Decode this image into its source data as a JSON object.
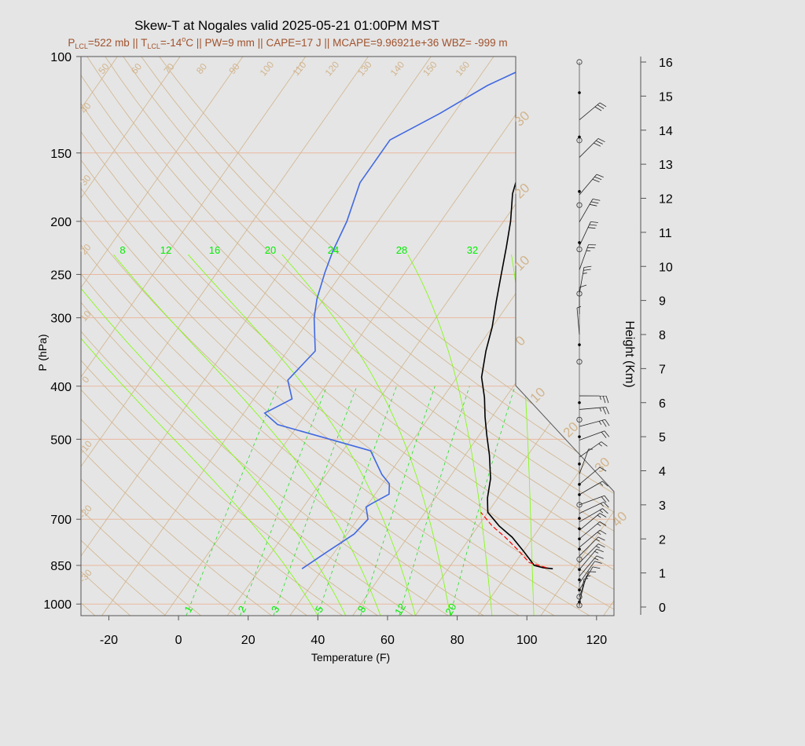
{
  "title": "Skew-T at Nogales valid 2025-05-21 01:00PM MST",
  "subtitle": {
    "p_lcl_sym": "P",
    "p_lcl_sub": "LCL",
    "p_lcl_val": "=522 mb || ",
    "t_lcl_sym": "T",
    "t_lcl_sub": "LCL",
    "t_lcl_val": "=-14",
    "deg": "o",
    "rest": "C || PW=9 mm || CAPE=17 J || MCAPE=9.96921e+36 WBZ= -999 m"
  },
  "chart_data": {
    "type": "line",
    "xlabel": "Temperature (F)",
    "ylabel": "P (hPa)",
    "y2label": "Height (Km)",
    "xlim": [
      -28,
      125
    ],
    "ylim": [
      1050,
      100
    ],
    "y_log": true,
    "x_ticks": [
      -20,
      0,
      20,
      40,
      60,
      80,
      100,
      120
    ],
    "y_ticks": [
      1000,
      850,
      700,
      500,
      400,
      300,
      250,
      200,
      150,
      100
    ],
    "height_ticks": [
      0,
      1,
      2,
      3,
      4,
      5,
      6,
      7,
      8,
      9,
      10,
      11,
      12,
      13,
      14,
      15,
      16
    ],
    "dry_adiabat_labels": [
      "50",
      "60",
      "70",
      "80",
      "90",
      "100",
      "110",
      "120",
      "130",
      "140",
      "150",
      "160"
    ],
    "skew_temp_labels_left": [
      "40",
      "30",
      "20",
      "10",
      "0",
      "-10",
      "-20",
      "-30"
    ],
    "skew_temp_labels_right": [
      "30",
      "20",
      "10",
      "0",
      "10",
      "20",
      "30",
      "40"
    ],
    "wet_bulb_labels": [
      "8",
      "12",
      "16",
      "20",
      "24",
      "28",
      "32"
    ],
    "mixing_ratio_labels": [
      "1",
      "2",
      "3",
      "5",
      "8",
      "12",
      "20"
    ],
    "series": [
      {
        "name": "temperature",
        "color": "#000000",
        "points": [
          [
            98,
            862
          ],
          [
            95,
            858
          ],
          [
            92,
            850
          ],
          [
            86,
            800
          ],
          [
            80,
            755
          ],
          [
            74,
            720
          ],
          [
            68,
            680
          ],
          [
            65,
            640
          ],
          [
            62,
            590
          ],
          [
            57,
            535
          ],
          [
            52,
            490
          ],
          [
            48,
            455
          ],
          [
            44,
            420
          ],
          [
            39,
            385
          ],
          [
            35,
            345
          ],
          [
            32,
            312
          ],
          [
            28,
            280
          ],
          [
            24,
            250
          ],
          [
            20,
            223
          ],
          [
            16,
            200
          ],
          [
            11,
            178
          ],
          [
            8,
            160
          ],
          [
            6,
            143
          ],
          [
            8,
            127
          ],
          [
            14,
            113
          ],
          [
            18,
            100
          ]
        ]
      },
      {
        "name": "dewpoint",
        "color": "#4169e1",
        "points": [
          [
            26,
            862
          ],
          [
            30,
            800
          ],
          [
            34,
            745
          ],
          [
            35,
            700
          ],
          [
            32,
            665
          ],
          [
            33,
            655
          ],
          [
            36,
            630
          ],
          [
            34,
            603
          ],
          [
            30,
            580
          ],
          [
            22,
            525
          ],
          [
            -10,
            470
          ],
          [
            -16,
            448
          ],
          [
            -11,
            422
          ],
          [
            -16,
            390
          ],
          [
            -14,
            345
          ],
          [
            -21,
            300
          ],
          [
            -24,
            277
          ],
          [
            -27,
            248
          ],
          [
            -29,
            227
          ],
          [
            -31,
            200
          ],
          [
            -35,
            170
          ],
          [
            -35,
            142
          ],
          [
            -26,
            127
          ],
          [
            -18,
            113
          ],
          [
            -6,
            100
          ]
        ]
      },
      {
        "name": "parcel",
        "color": "#ff0000",
        "points": [
          [
            96,
            858
          ],
          [
            90,
            840
          ],
          [
            84,
            795
          ],
          [
            78,
            755
          ],
          [
            72,
            720
          ],
          [
            66,
            680
          ]
        ]
      }
    ],
    "wind_barbs": [
      {
        "km": 0.05,
        "dir": 190,
        "kt": 5
      },
      {
        "km": 0.15,
        "dir": 195,
        "kt": 5
      },
      {
        "km": 0.3,
        "dir": 200,
        "kt": 10
      },
      {
        "km": 0.5,
        "dir": 210,
        "kt": 10
      },
      {
        "km": 0.7,
        "dir": 215,
        "kt": 10
      },
      {
        "km": 0.9,
        "dir": 220,
        "kt": 15
      },
      {
        "km": 1.1,
        "dir": 220,
        "kt": 15
      },
      {
        "km": 1.3,
        "dir": 225,
        "kt": 15
      },
      {
        "km": 1.5,
        "dir": 225,
        "kt": 15
      },
      {
        "km": 1.75,
        "dir": 230,
        "kt": 15
      },
      {
        "km": 2.0,
        "dir": 230,
        "kt": 15
      },
      {
        "km": 2.25,
        "dir": 230,
        "kt": 15
      },
      {
        "km": 2.5,
        "dir": 240,
        "kt": 15
      },
      {
        "km": 2.75,
        "dir": 245,
        "kt": 15
      },
      {
        "km": 3.0,
        "dir": 250,
        "kt": 20
      },
      {
        "km": 3.3,
        "dir": 240,
        "kt": 15
      },
      {
        "km": 3.6,
        "dir": 230,
        "kt": 10
      },
      {
        "km": 3.9,
        "dir": 200,
        "kt": 5
      },
      {
        "km": 4.4,
        "dir": 235,
        "kt": 15
      },
      {
        "km": 4.9,
        "dir": 250,
        "kt": 20
      },
      {
        "km": 5.3,
        "dir": 255,
        "kt": 25
      },
      {
        "km": 5.8,
        "dir": 265,
        "kt": 25
      },
      {
        "km": 6.2,
        "dir": 270,
        "kt": 25
      },
      {
        "km": 8.0,
        "dir": 175,
        "kt": 5
      },
      {
        "km": 8.6,
        "dir": 180,
        "kt": 10
      },
      {
        "km": 9.2,
        "dir": 190,
        "kt": 25
      },
      {
        "km": 9.9,
        "dir": 200,
        "kt": 25
      },
      {
        "km": 10.6,
        "dir": 205,
        "kt": 30
      },
      {
        "km": 11.3,
        "dir": 210,
        "kt": 30
      },
      {
        "km": 12.1,
        "dir": 220,
        "kt": 30
      },
      {
        "km": 13.2,
        "dir": 225,
        "kt": 30
      },
      {
        "km": 14.3,
        "dir": 230,
        "kt": 30
      }
    ],
    "wind_obs_levels_km": [
      0.05,
      0.3,
      1.4,
      3.0,
      5.5,
      7.2,
      9.2,
      10.5,
      11.8,
      13.7,
      16.0
    ],
    "wind_dot_levels_km": [
      0.15,
      0.5,
      0.8,
      1.1,
      1.7,
      2.0,
      2.3,
      2.6,
      3.3,
      3.6,
      4.2,
      5.0,
      6.0,
      7.7,
      10.7,
      12.2,
      13.8,
      15.1
    ]
  },
  "colors": {
    "background": "#e5e5e5",
    "isotherm": "#d2b48c",
    "isobar": "#eab9a0",
    "moist": "#7cfc00",
    "mixing": "#22dd22",
    "dewpoint": "#4169e1",
    "temperature": "#000000",
    "parcel": "#ff0000"
  }
}
